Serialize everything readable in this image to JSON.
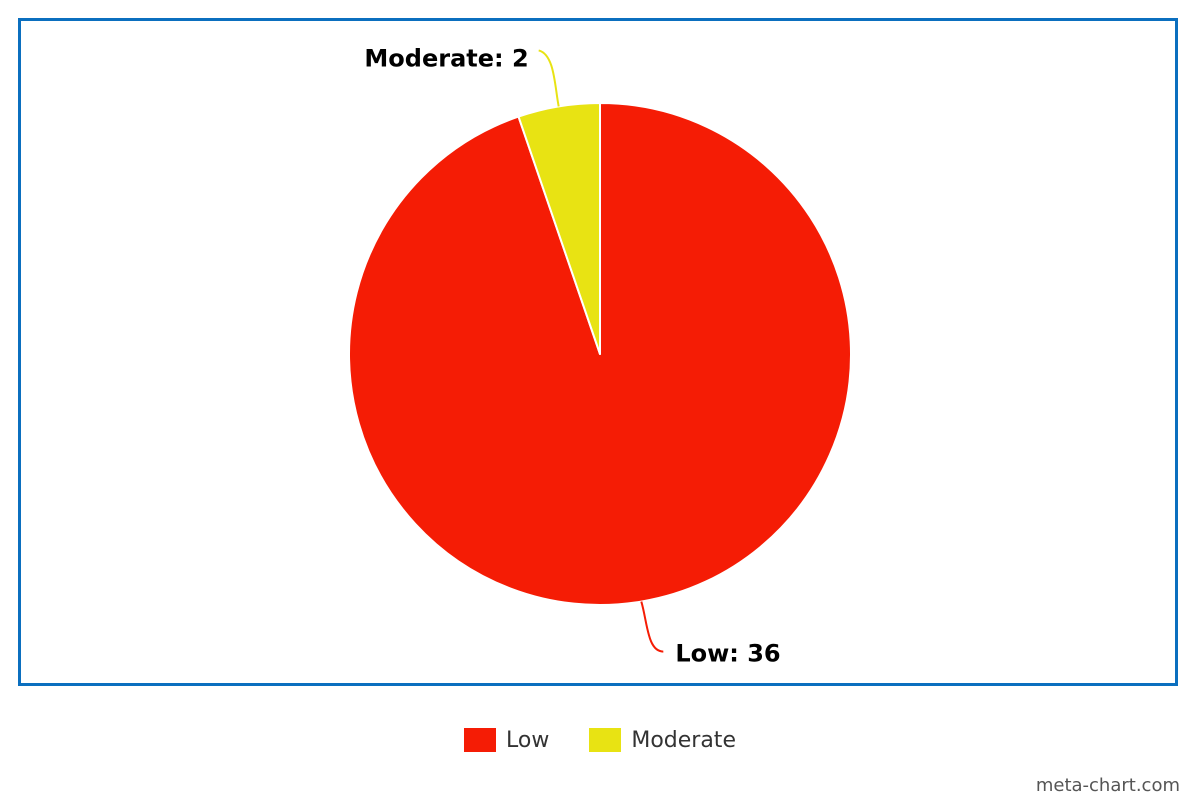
{
  "chart_data": {
    "type": "pie",
    "slices": [
      {
        "label": "Low",
        "value": 36,
        "color": "#f51c05",
        "data_label": "Low: 36"
      },
      {
        "label": "Moderate",
        "value": 2,
        "color": "#e8e313",
        "data_label": "Moderate: 2"
      }
    ],
    "legend_placement": "bottom-center",
    "frame_color": "#0b6fbf"
  },
  "legend": {
    "items": [
      {
        "label": "Low",
        "color": "#f51c05"
      },
      {
        "label": "Moderate",
        "color": "#e8e313"
      }
    ]
  },
  "credit": "meta-chart.com"
}
